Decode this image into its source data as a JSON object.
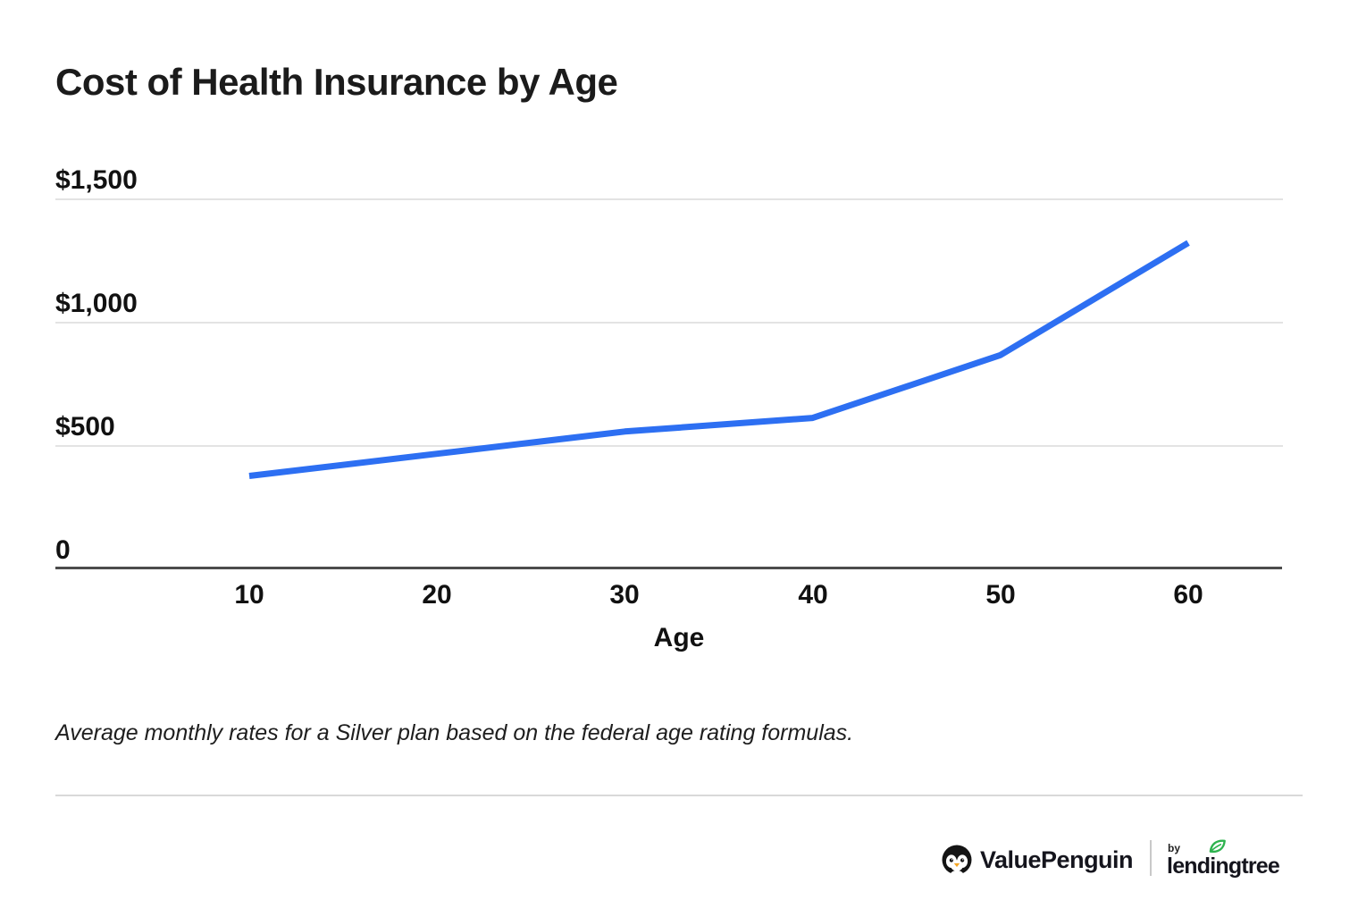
{
  "chart_data": {
    "type": "line",
    "title": "Cost of Health Insurance by Age",
    "x": [
      10,
      20,
      30,
      40,
      50,
      60
    ],
    "values": [
      375,
      465,
      555,
      610,
      865,
      1320
    ],
    "xlabel": "Age",
    "ylabel": "",
    "ylim": [
      0,
      1500
    ],
    "yticks": [
      {
        "value": 0,
        "label": "0"
      },
      {
        "value": 500,
        "label": "$500"
      },
      {
        "value": 1000,
        "label": "$1,000"
      },
      {
        "value": 1500,
        "label": "$1,500"
      }
    ],
    "grid": "horizontal",
    "legend": "none",
    "line_color": "#2d6ff2"
  },
  "caption": "Average monthly rates for a Silver plan based on the federal age rating formulas.",
  "footer": {
    "brand": "ValuePenguin",
    "by_label": "by",
    "partner": "lendingtree"
  },
  "colors": {
    "accent_blue": "#2d6ff2",
    "gridline": "#e3e3e3",
    "axis": "#4c4c4c",
    "divider": "#d9d9d9",
    "text": "#191919",
    "leaf_green": "#2eb34f",
    "beak_orange": "#f5a623"
  }
}
